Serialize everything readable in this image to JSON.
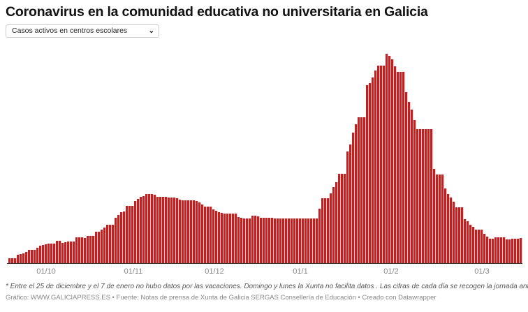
{
  "title": "Coronavirus en la comunidad educativa no universitaria en Galicia",
  "selector": {
    "selected": "Casos activos en centros escolares",
    "icon": "chevron-down-icon"
  },
  "chart_data": {
    "type": "bar",
    "title": "Coronavirus en la comunidad educativa no universitaria en Galicia",
    "series_label": "Casos activos en centros escolares",
    "color": "#c71e1d",
    "xlabel": "",
    "ylabel": "",
    "y_axis_shown": false,
    "grid": false,
    "ylim": [
      0,
      300
    ],
    "x_ticks": [
      "01/10",
      "01/11",
      "01/12",
      "01/1",
      "01/2",
      "01/3"
    ],
    "values": [
      7,
      7,
      7,
      12,
      13,
      14,
      16,
      19,
      19,
      19,
      22,
      25,
      26,
      27,
      28,
      28,
      28,
      32,
      32,
      29,
      30,
      31,
      31,
      31,
      37,
      37,
      37,
      36,
      39,
      39,
      39,
      45,
      45,
      48,
      51,
      55,
      55,
      55,
      65,
      69,
      73,
      74,
      82,
      82,
      82,
      89,
      92,
      95,
      96,
      99,
      99,
      99,
      98,
      95,
      95,
      95,
      95,
      94,
      94,
      94,
      93,
      91,
      90,
      90,
      90,
      90,
      90,
      89,
      87,
      84,
      81,
      81,
      81,
      77,
      75,
      73,
      72,
      71,
      71,
      71,
      71,
      71,
      66,
      65,
      64,
      64,
      64,
      68,
      68,
      67,
      65,
      65,
      65,
      65,
      65,
      64,
      64,
      64,
      64,
      64,
      64,
      64,
      64,
      64,
      64,
      64,
      64,
      64,
      64,
      64,
      64,
      78,
      93,
      93,
      93,
      100,
      109,
      116,
      128,
      128,
      128,
      160,
      170,
      187,
      199,
      209,
      209,
      209,
      255,
      258,
      266,
      276,
      283,
      283,
      283,
      300,
      297,
      292,
      282,
      274,
      274,
      274,
      245,
      231,
      220,
      205,
      192,
      192,
      192,
      192,
      192,
      192,
      135,
      127,
      127,
      127,
      107,
      99,
      94,
      88,
      80,
      80,
      80,
      63,
      60,
      55,
      52,
      48,
      48,
      48,
      42,
      38,
      35,
      35,
      37,
      37,
      37,
      37,
      34,
      34,
      35,
      35,
      35,
      36
    ]
  },
  "footnote": "* Entre el 25 de diciembre y el 7 de enero no hubo datos por las vacaciones. Domingo y lunes la Xunta no facilita datos . Las cifras de cada día se recogen la jornada anterior",
  "credit": "Gráfico: WWW.GALICIAPRESS.ES • Fuente: Notas de prensa de Xunta de Galicia SERGAS Consellería de Educación • Creado con Datawrapper"
}
